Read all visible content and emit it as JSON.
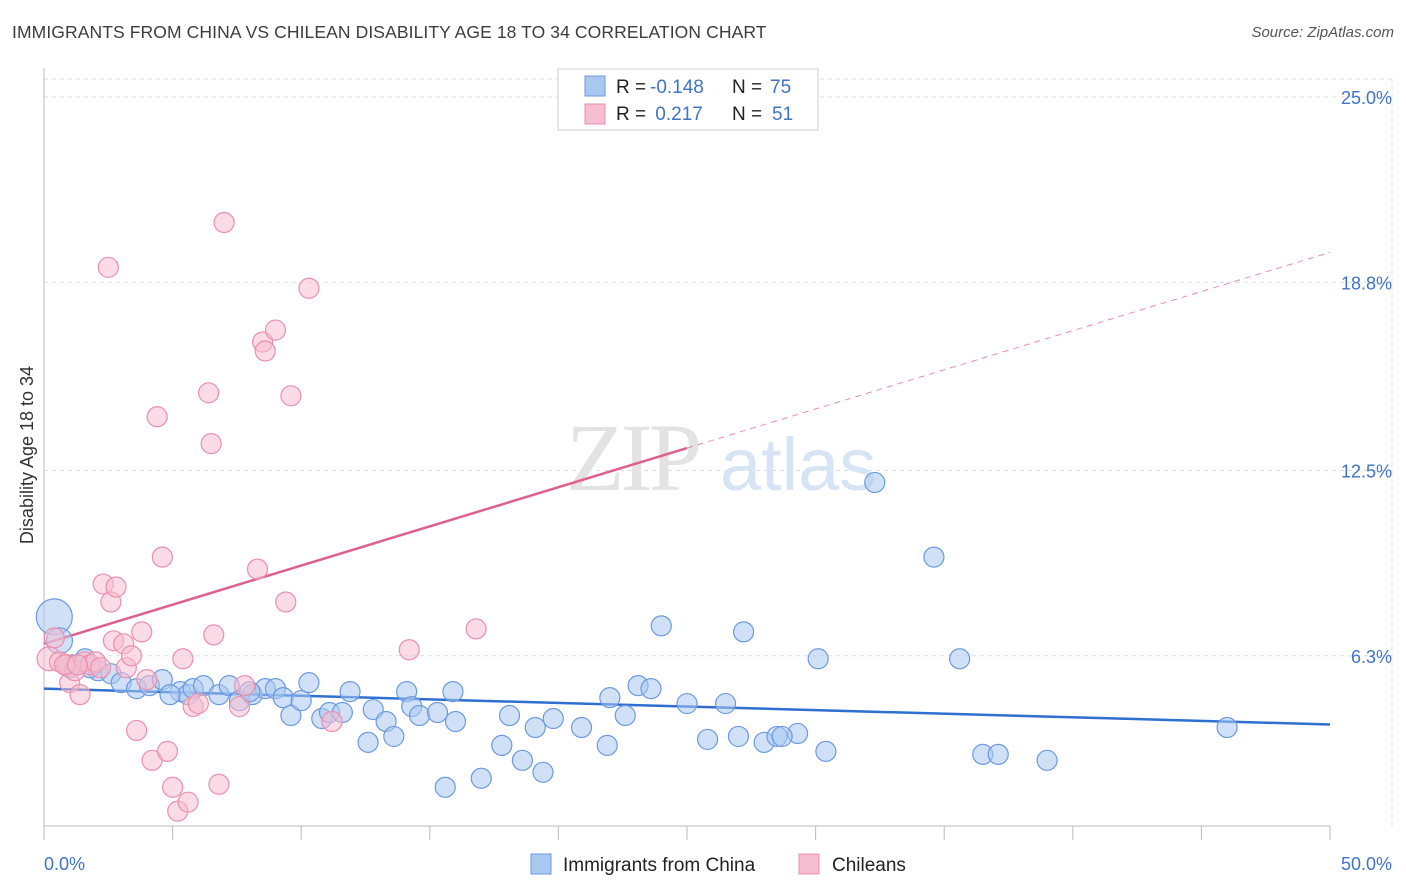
{
  "title": "IMMIGRANTS FROM CHINA VS CHILEAN DISABILITY AGE 18 TO 34 CORRELATION CHART",
  "source": "Source: ZipAtlas.com",
  "watermark": {
    "zip": "ZIP",
    "atlas": "atlas"
  },
  "legend": {
    "rows": [
      {
        "r_label": "R =",
        "r_value": "-0.148",
        "n_label": "N =",
        "n_value": "75"
      },
      {
        "r_label": "R =",
        "r_value": " 0.217",
        "n_label": "N =",
        "n_value": "51"
      }
    ]
  },
  "bottom_legend": [
    "Immigrants from China",
    "Chileans"
  ],
  "colors": {
    "blue_fill": "#a9c8f0",
    "blue_stroke": "#6b9ae0",
    "blue_line": "#2e6fd0",
    "pink_fill": "#f7bdd0",
    "pink_stroke": "#eb8fac",
    "pink_line": "#e0608c",
    "tick": "#3f74c6",
    "grid": "#dddddd"
  },
  "chart_data": {
    "type": "scatter",
    "title": "IMMIGRANTS FROM CHINA VS CHILEAN DISABILITY AGE 18 TO 34 CORRELATION CHART",
    "xlabel": "",
    "ylabel": "Disability Age 18 to 34",
    "xlim": [
      0,
      50
    ],
    "ylim": [
      0,
      26
    ],
    "x_tick_labels": [
      {
        "value": 0,
        "label": "0.0%"
      },
      {
        "value": 50,
        "label": "50.0%"
      }
    ],
    "y_tick_labels": [
      {
        "value": 6.3,
        "label": "6.3%"
      },
      {
        "value": 12.5,
        "label": "12.5%"
      },
      {
        "value": 18.8,
        "label": "18.8%"
      },
      {
        "value": 25.0,
        "label": "25.0%"
      }
    ],
    "grid": true,
    "legend_placement": "top-center",
    "series": [
      {
        "name": "Immigrants from China",
        "color": "#a9c8f0",
        "trend": {
          "x0": 0,
          "y0": 5.2,
          "x1": 50,
          "y1": 4.0,
          "dashed_from": null
        },
        "points": [
          [
            0.4,
            7.6,
            18
          ],
          [
            0.6,
            6.8,
            13
          ],
          [
            1.1,
            6.0,
            10
          ],
          [
            1.6,
            6.2,
            10
          ],
          [
            2.1,
            5.8,
            10
          ],
          [
            2.6,
            5.7,
            10
          ],
          [
            3.0,
            5.4,
            10
          ],
          [
            3.6,
            5.2,
            10
          ],
          [
            4.1,
            5.3,
            10
          ],
          [
            4.6,
            5.5,
            10
          ],
          [
            5.3,
            5.1,
            10
          ],
          [
            5.6,
            5.0,
            10
          ],
          [
            5.8,
            5.2,
            10
          ],
          [
            6.2,
            5.3,
            10
          ],
          [
            6.8,
            5.0,
            10
          ],
          [
            7.2,
            5.3,
            10
          ],
          [
            7.6,
            4.8,
            10
          ],
          [
            8.1,
            5.0,
            10
          ],
          [
            8.6,
            5.2,
            10
          ],
          [
            9.0,
            5.2,
            10
          ],
          [
            9.3,
            4.9,
            10
          ],
          [
            9.6,
            4.3,
            10
          ],
          [
            10.0,
            4.8,
            10
          ],
          [
            10.3,
            5.4,
            10
          ],
          [
            10.8,
            4.2,
            10
          ],
          [
            11.1,
            4.4,
            10
          ],
          [
            11.6,
            4.4,
            10
          ],
          [
            11.9,
            5.1,
            10
          ],
          [
            12.6,
            3.4,
            10
          ],
          [
            12.8,
            4.5,
            10
          ],
          [
            13.3,
            4.1,
            10
          ],
          [
            13.6,
            3.6,
            10
          ],
          [
            14.1,
            5.1,
            10
          ],
          [
            14.3,
            4.6,
            10
          ],
          [
            14.6,
            4.3,
            10
          ],
          [
            15.3,
            4.4,
            10
          ],
          [
            15.6,
            1.9,
            10
          ],
          [
            15.9,
            5.1,
            10
          ],
          [
            17.0,
            2.2,
            10
          ],
          [
            17.8,
            3.3,
            10
          ],
          [
            18.1,
            4.3,
            10
          ],
          [
            18.6,
            2.8,
            10
          ],
          [
            19.1,
            3.9,
            10
          ],
          [
            19.4,
            2.4,
            10
          ],
          [
            19.8,
            4.2,
            10
          ],
          [
            20.9,
            3.9,
            10
          ],
          [
            21.9,
            3.3,
            10
          ],
          [
            22.0,
            4.9,
            10
          ],
          [
            22.6,
            4.3,
            10
          ],
          [
            23.1,
            5.3,
            10
          ],
          [
            23.6,
            5.2,
            10
          ],
          [
            24.0,
            7.3,
            10
          ],
          [
            25.0,
            4.7,
            10
          ],
          [
            25.8,
            3.5,
            10
          ],
          [
            26.5,
            4.7,
            10
          ],
          [
            27.0,
            3.6,
            10
          ],
          [
            27.2,
            7.1,
            10
          ],
          [
            28.0,
            3.4,
            10
          ],
          [
            28.5,
            3.6,
            10
          ],
          [
            29.3,
            3.7,
            10
          ],
          [
            28.7,
            3.6,
            10
          ],
          [
            30.1,
            6.2,
            10
          ],
          [
            30.4,
            3.1,
            10
          ],
          [
            32.3,
            12.1,
            10
          ],
          [
            34.6,
            9.6,
            10
          ],
          [
            35.6,
            6.2,
            10
          ],
          [
            36.5,
            3.0,
            10
          ],
          [
            37.1,
            3.0,
            10
          ],
          [
            39.0,
            2.8,
            10
          ],
          [
            46.0,
            3.9,
            10
          ],
          [
            1.0,
            5.9,
            10
          ],
          [
            1.8,
            5.9,
            10
          ],
          [
            4.9,
            5.0,
            10
          ],
          [
            8.0,
            5.1,
            10
          ],
          [
            16.0,
            4.1,
            10
          ]
        ]
      },
      {
        "name": "Chileans",
        "color": "#f7bdd0",
        "trend": {
          "x0": 0,
          "y0": 6.7,
          "x1": 50,
          "y1": 19.8,
          "dashed_from": 25
        },
        "points": [
          [
            0.2,
            6.2,
            12
          ],
          [
            0.4,
            6.9,
            10
          ],
          [
            0.6,
            6.1,
            10
          ],
          [
            0.9,
            6.0,
            10
          ],
          [
            1.0,
            5.4,
            10
          ],
          [
            1.2,
            5.8,
            10
          ],
          [
            1.4,
            5.0,
            10
          ],
          [
            1.6,
            6.1,
            10
          ],
          [
            1.8,
            6.0,
            10
          ],
          [
            2.0,
            6.1,
            10
          ],
          [
            2.3,
            8.7,
            10
          ],
          [
            2.6,
            8.1,
            10
          ],
          [
            2.7,
            6.8,
            10
          ],
          [
            2.8,
            8.6,
            10
          ],
          [
            3.1,
            6.7,
            10
          ],
          [
            3.2,
            5.9,
            10
          ],
          [
            3.4,
            6.3,
            10
          ],
          [
            3.6,
            3.8,
            10
          ],
          [
            3.8,
            7.1,
            10
          ],
          [
            4.0,
            5.5,
            10
          ],
          [
            4.2,
            2.8,
            10
          ],
          [
            4.4,
            14.3,
            10
          ],
          [
            4.6,
            9.6,
            10
          ],
          [
            4.8,
            3.1,
            10
          ],
          [
            5.0,
            1.9,
            10
          ],
          [
            5.2,
            1.1,
            10
          ],
          [
            5.4,
            6.2,
            10
          ],
          [
            5.6,
            1.4,
            10
          ],
          [
            5.8,
            4.6,
            10
          ],
          [
            6.0,
            4.7,
            10
          ],
          [
            6.4,
            15.1,
            10
          ],
          [
            6.5,
            13.4,
            10
          ],
          [
            6.6,
            7.0,
            10
          ],
          [
            6.8,
            2.0,
            10
          ],
          [
            7.0,
            20.8,
            10
          ],
          [
            7.8,
            5.3,
            10
          ],
          [
            7.6,
            4.6,
            10
          ],
          [
            8.3,
            9.2,
            10
          ],
          [
            8.5,
            16.8,
            10
          ],
          [
            8.6,
            16.5,
            10
          ],
          [
            9.0,
            17.2,
            10
          ],
          [
            9.4,
            8.1,
            10
          ],
          [
            9.6,
            15.0,
            10
          ],
          [
            10.3,
            18.6,
            10
          ],
          [
            11.2,
            4.1,
            10
          ],
          [
            14.2,
            6.5,
            10
          ],
          [
            16.8,
            7.2,
            10
          ],
          [
            2.5,
            19.3,
            10
          ],
          [
            0.8,
            6.0,
            10
          ],
          [
            1.3,
            6.0,
            10
          ],
          [
            2.2,
            5.9,
            10
          ]
        ]
      }
    ]
  }
}
